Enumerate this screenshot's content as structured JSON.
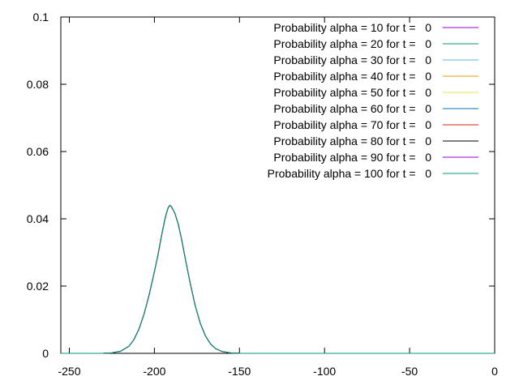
{
  "chart_data": {
    "type": "line",
    "title": "",
    "xlabel": "",
    "ylabel": "",
    "xlim": [
      -255,
      0
    ],
    "ylim": [
      0,
      0.1
    ],
    "x_ticks": [
      "-250",
      "-200",
      "-150",
      "-100",
      "-50",
      "0"
    ],
    "y_ticks": [
      "0",
      "0.02",
      "0.04",
      "0.06",
      "0.08",
      "0.1"
    ],
    "grid": false,
    "legend_position": "top-right",
    "x": [
      -255,
      -240,
      -230,
      -225,
      -220,
      -215,
      -212,
      -209,
      -206,
      -203,
      -200,
      -198,
      -196,
      -194,
      -193,
      -192,
      -191,
      -190,
      -188,
      -186,
      -184,
      -182,
      -179,
      -176,
      -173,
      -170,
      -167,
      -164,
      -160,
      -155,
      -150,
      -140,
      -120,
      -100,
      -80,
      -60,
      -40,
      -20,
      0
    ],
    "series": [
      {
        "name": "Probability alpha = 10 for t =   0",
        "color": "#9400d3"
      },
      {
        "name": "Probability alpha = 20 for t =   0",
        "color": "#009e73"
      },
      {
        "name": "Probability alpha = 30 for t =   0",
        "color": "#56b4e9"
      },
      {
        "name": "Probability alpha = 40 for t =   0",
        "color": "#e69f00"
      },
      {
        "name": "Probability alpha = 50 for t =   0",
        "color": "#f0e442"
      },
      {
        "name": "Probability alpha = 60 for t =   0",
        "color": "#0072b2"
      },
      {
        "name": "Probability alpha = 70 for t =   0",
        "color": "#e51e10"
      },
      {
        "name": "Probability alpha = 80 for t =   0",
        "color": "#000000"
      },
      {
        "name": "Probability alpha = 90 for t =   0",
        "color": "#9400d3"
      },
      {
        "name": "Probability alpha = 100 for t =   0",
        "color": "#009e73"
      }
    ],
    "y": [
      0,
      0,
      3e-05,
      0.00015,
      0.0006,
      0.0021,
      0.0041,
      0.0073,
      0.0118,
      0.0176,
      0.0243,
      0.029,
      0.0345,
      0.0395,
      0.0415,
      0.0432,
      0.044,
      0.0436,
      0.0417,
      0.0384,
      0.0338,
      0.0285,
      0.0209,
      0.0142,
      0.0089,
      0.0052,
      0.0028,
      0.0014,
      0.0005,
      0.00012,
      2e-05,
      0,
      0,
      0,
      0,
      0,
      0,
      0,
      0
    ]
  }
}
